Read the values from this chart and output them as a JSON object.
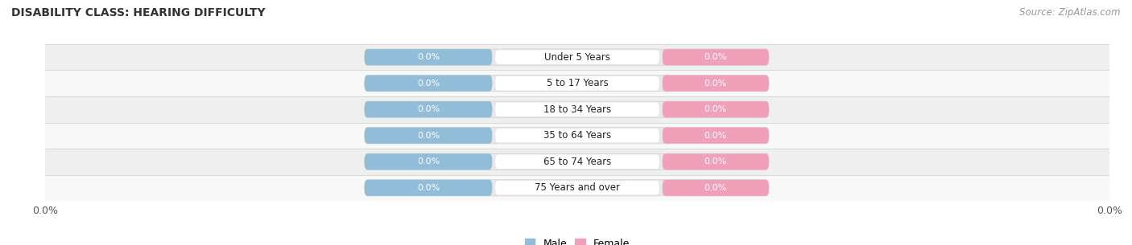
{
  "title": "DISABILITY CLASS: HEARING DIFFICULTY",
  "source": "Source: ZipAtlas.com",
  "categories": [
    "Under 5 Years",
    "5 to 17 Years",
    "18 to 34 Years",
    "35 to 64 Years",
    "65 to 74 Years",
    "75 Years and over"
  ],
  "male_values": [
    0.0,
    0.0,
    0.0,
    0.0,
    0.0,
    0.0
  ],
  "female_values": [
    0.0,
    0.0,
    0.0,
    0.0,
    0.0,
    0.0
  ],
  "male_color": "#92bdd8",
  "female_color": "#f0a0b8",
  "row_bg_colors": [
    "#efefef",
    "#f8f8f8"
  ],
  "title_fontsize": 10,
  "source_fontsize": 8.5,
  "background_color": "#ffffff",
  "legend_male": "Male",
  "legend_female": "Female"
}
